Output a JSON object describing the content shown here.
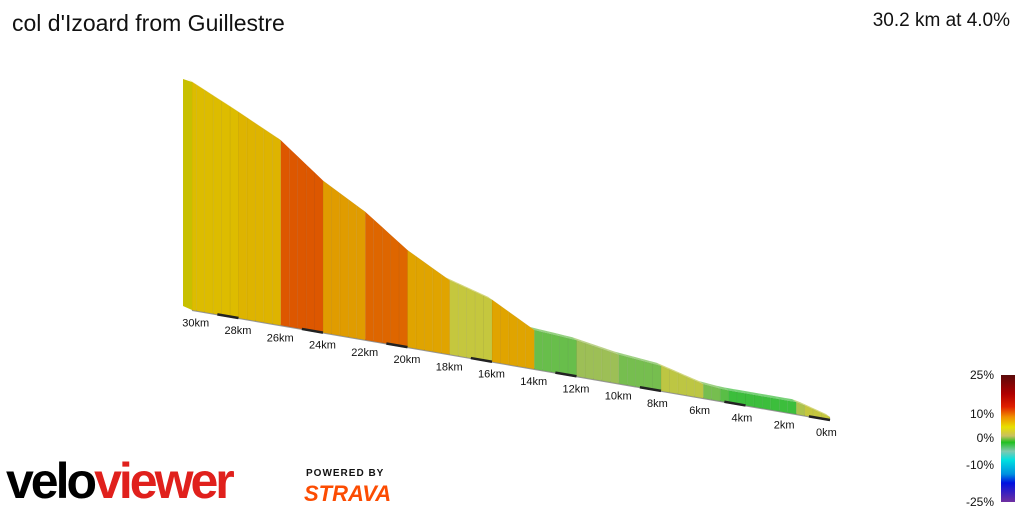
{
  "header": {
    "title": "col d'Izoard from Guillestre",
    "summary": "30.2 km at 4.0%"
  },
  "chart_data": {
    "type": "area",
    "title": "col d'Izoard from Guillestre",
    "x_unit": "km",
    "x_reversed": true,
    "xlim": [
      0,
      30.2
    ],
    "x_ticks": [
      "0km",
      "2km",
      "4km",
      "6km",
      "8km",
      "10km",
      "12km",
      "14km",
      "16km",
      "18km",
      "20km",
      "22km",
      "24km",
      "26km",
      "28km",
      "30km"
    ],
    "x_tick_values": [
      0,
      2,
      4,
      6,
      8,
      10,
      12,
      14,
      16,
      18,
      20,
      22,
      24,
      26,
      28,
      30
    ],
    "profile": {
      "km": [
        0,
        1.5,
        5,
        6,
        8,
        10,
        12,
        14,
        16,
        18,
        20,
        22,
        24,
        26,
        28,
        30.2
      ],
      "relative_height": [
        18,
        72,
        72,
        84,
        150,
        174,
        216,
        234,
        372,
        444,
        582,
        768,
        912,
        1110,
        1236,
        1368
      ]
    },
    "color_scale": {
      "label_values": [
        "25%",
        "10%",
        "0%",
        "-10%",
        "-25%"
      ],
      "colors": [
        "#5a0a0a",
        "#e02000",
        "#e8e000",
        "#20c020",
        "#00e0e0",
        "#0010e0",
        "#7030a0"
      ]
    }
  },
  "branding": {
    "logo_part1": "velo",
    "logo_part2": "viewer",
    "powered_by": "POWERED BY",
    "strava": "STRAVA"
  }
}
